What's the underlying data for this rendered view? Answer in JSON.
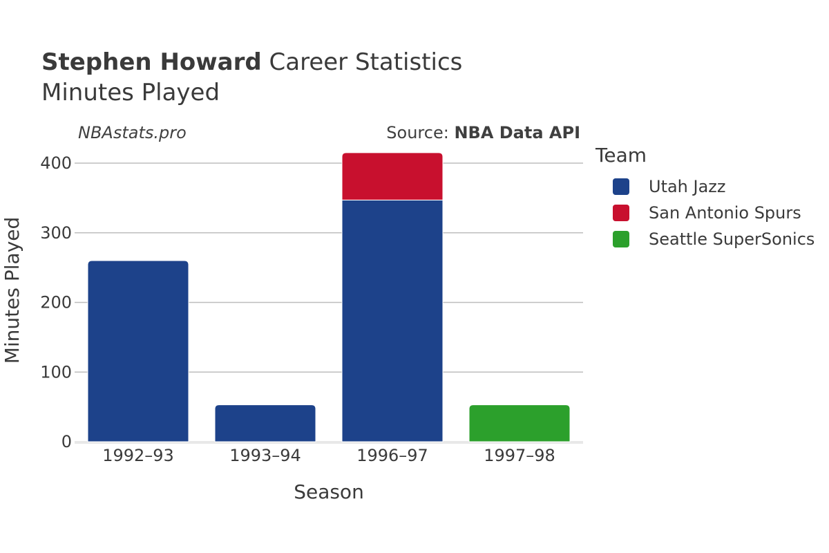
{
  "header": {
    "player_name": "Stephen Howard",
    "title_suffix": "Career Statistics",
    "subtitle": "Minutes Played"
  },
  "watermark": "NBAstats.pro",
  "source": {
    "prefix": "Source: ",
    "name": "NBA Data API"
  },
  "legend": {
    "title": "Team",
    "items": [
      {
        "label": "Utah Jazz",
        "color": "#1d428a"
      },
      {
        "label": "San Antonio Spurs",
        "color": "#c8102e"
      },
      {
        "label": "Seattle SuperSonics",
        "color": "#2ca02c"
      }
    ]
  },
  "chart_data": {
    "type": "bar",
    "stacked": true,
    "xlabel": "Season",
    "ylabel": "Minutes Played",
    "ylim": [
      0,
      420
    ],
    "yticks": [
      0,
      100,
      200,
      300,
      400
    ],
    "grid": true,
    "legend_position": "right",
    "categories": [
      "1992–93",
      "1993–94",
      "1996–97",
      "1997–98"
    ],
    "series": [
      {
        "name": "Utah Jazz",
        "color": "#1d428a",
        "values": [
          260,
          53,
          347,
          0
        ]
      },
      {
        "name": "San Antonio Spurs",
        "color": "#c8102e",
        "values": [
          0,
          0,
          68,
          0
        ]
      },
      {
        "name": "Seattle SuperSonics",
        "color": "#2ca02c",
        "values": [
          0,
          0,
          0,
          53
        ]
      }
    ]
  }
}
